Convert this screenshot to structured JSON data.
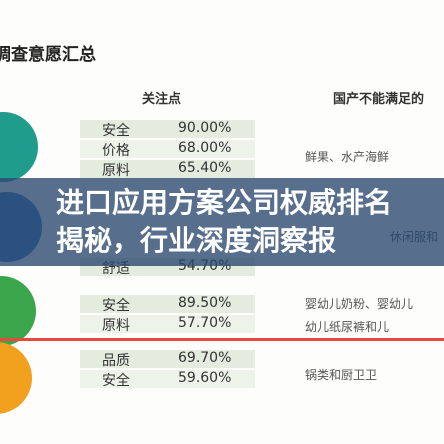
{
  "title": "调查意愿汇总",
  "header": {
    "focus": "关注点",
    "unmet": "国产不能满足的"
  },
  "groups": [
    {
      "rows": [
        {
          "item": "安全",
          "pct": "90.00%"
        },
        {
          "item": "价格",
          "pct": "68.00%"
        },
        {
          "item": "原料",
          "pct": "65.40%"
        }
      ],
      "note": "鲜果、水产海鲜"
    },
    {
      "rows": [
        {
          "item": "舒适",
          "pct": "54.70%"
        }
      ],
      "note": "休闲服和"
    },
    {
      "rows": [
        {
          "item": "安全",
          "pct": "89.50%"
        },
        {
          "item": "原料",
          "pct": "57.70%"
        }
      ],
      "note": "婴幼儿奶粉、婴幼儿",
      "note2": "幼儿纸尿裤和儿"
    },
    {
      "rows": [
        {
          "item": "品质",
          "pct": "69.70%"
        },
        {
          "item": "安全",
          "pct": "59.60%"
        }
      ],
      "note": "锅类和厨卫卫"
    }
  ],
  "banner": "进口应用方案公司权威排名揭秘，行业深度洞察报"
}
